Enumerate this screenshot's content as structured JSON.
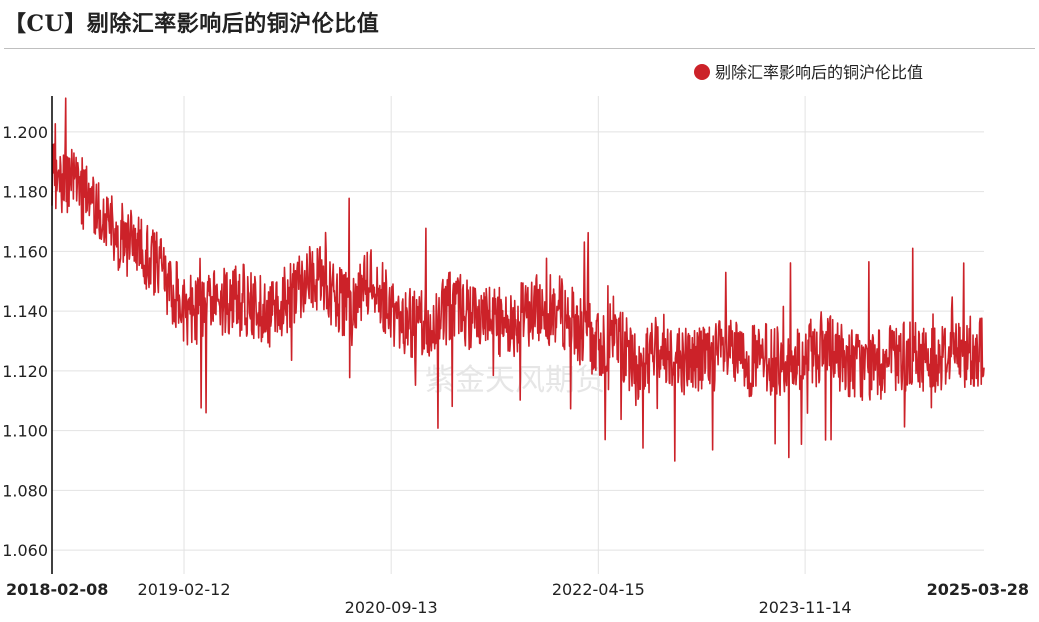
{
  "title": "【CU】剔除汇率影响后的铜沪伦比值",
  "watermark": "紫金天风期货",
  "colors": {
    "series": "#cc2229",
    "grid": "#e2e2e2",
    "axis": "#000000"
  },
  "chart_data": {
    "type": "line",
    "title": "【CU】剔除汇率影响后的铜沪伦比值",
    "xlabel": "",
    "ylabel": "",
    "x_start": "2018-02-08",
    "x_end": "2025-03-28",
    "x_ticks": [
      "2018-02-08",
      "2019-02-12",
      "2020-09-13",
      "2022-04-15",
      "2023-11-14",
      "2025-03-28"
    ],
    "ylim": [
      1.052,
      1.212
    ],
    "y_ticks": [
      1.06,
      1.08,
      1.1,
      1.12,
      1.14,
      1.16,
      1.18,
      1.2
    ],
    "y_tick_labels": [
      "1.060",
      "1.080",
      "1.100",
      "1.120",
      "1.140",
      "1.160",
      "1.180",
      "1.200"
    ],
    "grid": true,
    "legend": "top-right",
    "series": [
      {
        "name": "剔除汇率影响后的铜沪伦比值",
        "color": "#cc2229",
        "x": [
          "2018-02-08",
          "2018-04-01",
          "2018-06-01",
          "2018-08-01",
          "2018-10-01",
          "2018-12-01",
          "2019-02-12",
          "2019-04-01",
          "2019-06-01",
          "2019-08-01",
          "2019-10-01",
          "2019-12-01",
          "2020-02-01",
          "2020-04-01",
          "2020-06-01",
          "2020-07-01",
          "2020-09-13",
          "2020-11-01",
          "2021-01-01",
          "2021-03-01",
          "2021-05-01",
          "2021-07-01",
          "2021-09-01",
          "2021-11-01",
          "2022-01-01",
          "2022-03-01",
          "2022-04-15",
          "2022-06-01",
          "2022-08-01",
          "2022-10-01",
          "2022-12-01",
          "2023-02-01",
          "2023-04-01",
          "2023-06-01",
          "2023-08-01",
          "2023-10-01",
          "2023-11-14",
          "2024-01-01",
          "2024-03-01",
          "2024-05-01",
          "2024-07-01",
          "2024-09-01",
          "2024-11-01",
          "2025-01-01",
          "2025-03-28"
        ],
        "values": [
          1.186,
          1.183,
          1.176,
          1.166,
          1.162,
          1.156,
          1.141,
          1.139,
          1.144,
          1.145,
          1.139,
          1.145,
          1.153,
          1.147,
          1.139,
          1.151,
          1.141,
          1.136,
          1.134,
          1.142,
          1.138,
          1.136,
          1.137,
          1.141,
          1.14,
          1.133,
          1.128,
          1.134,
          1.119,
          1.129,
          1.124,
          1.124,
          1.126,
          1.123,
          1.124,
          1.122,
          1.124,
          1.128,
          1.124,
          1.121,
          1.123,
          1.125,
          1.124,
          1.126,
          1.127
        ],
        "noise_amplitude": 0.012
      }
    ]
  }
}
